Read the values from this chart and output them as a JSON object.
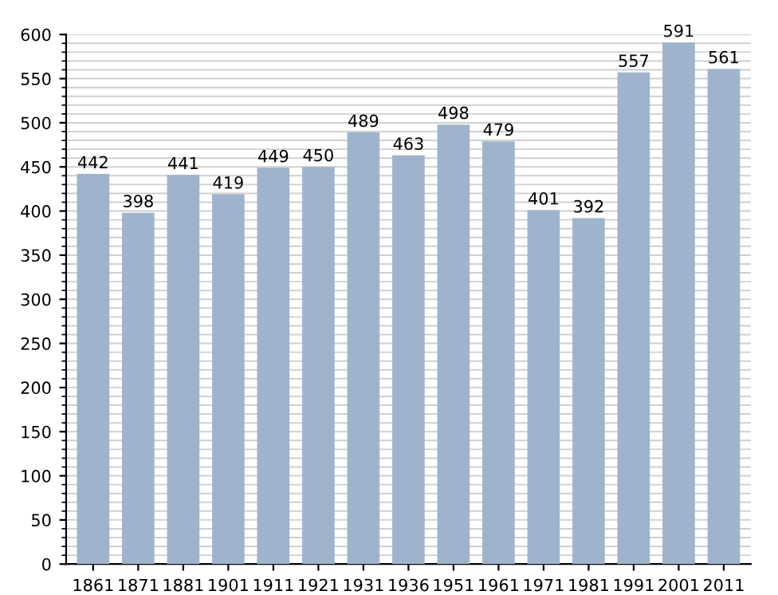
{
  "chart_data": {
    "type": "bar",
    "categories": [
      "1861",
      "1871",
      "1881",
      "1901",
      "1911",
      "1921",
      "1931",
      "1936",
      "1951",
      "1961",
      "1971",
      "1981",
      "1991",
      "2001",
      "2011"
    ],
    "values": [
      442,
      398,
      441,
      419,
      449,
      450,
      489,
      463,
      498,
      479,
      401,
      392,
      557,
      591,
      561
    ],
    "color": "#9fb4cc",
    "ylim": [
      0,
      600
    ],
    "yticks": [
      0,
      50,
      100,
      150,
      200,
      250,
      300,
      350,
      400,
      450,
      500,
      550,
      600
    ],
    "grid": "y",
    "data_labels": true
  }
}
